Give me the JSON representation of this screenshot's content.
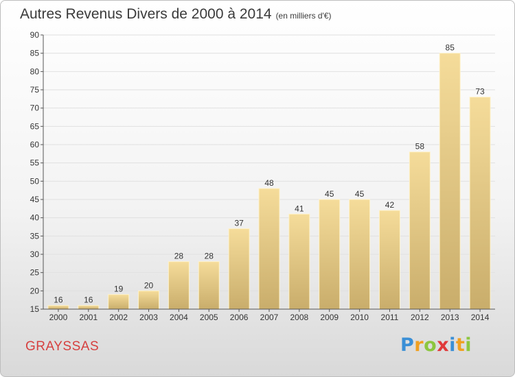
{
  "title": "Autres Revenus Divers de 2000 à 2014",
  "subtitle": "(en milliers d'€)",
  "commune": "GRAYSSAS",
  "brand": {
    "letters": [
      "P",
      "r",
      "o",
      "x",
      "i",
      "t",
      "i"
    ],
    "colors": [
      "#3a8fd6",
      "#f0a020",
      "#8cc63f",
      "#e03a3a",
      "#3a8fd6",
      "#f0a020",
      "#8cc63f"
    ]
  },
  "colors": {
    "bar_light": "#f5dc9a",
    "bar_dark": "#c9ad6b",
    "axis": "#555555",
    "grid": "#e0e0e0",
    "commune": "#d6403f"
  },
  "chart_data": {
    "type": "bar",
    "categories": [
      "2000",
      "2001",
      "2002",
      "2003",
      "2004",
      "2005",
      "2006",
      "2007",
      "2008",
      "2009",
      "2010",
      "2011",
      "2012",
      "2013",
      "2014"
    ],
    "values": [
      16,
      16,
      19,
      20,
      28,
      28,
      37,
      48,
      41,
      45,
      45,
      42,
      58,
      85,
      73
    ],
    "ylim": [
      15,
      90
    ],
    "yticks": [
      15,
      20,
      25,
      30,
      35,
      40,
      45,
      50,
      55,
      60,
      65,
      70,
      75,
      80,
      85,
      90
    ],
    "grid": true,
    "xlabel": "",
    "ylabel": ""
  }
}
